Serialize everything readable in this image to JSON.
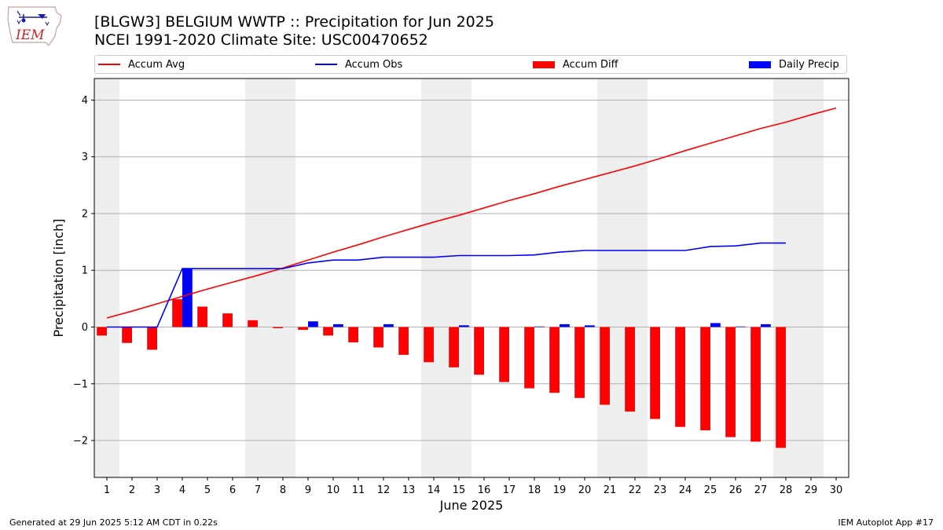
{
  "header": {
    "title_line1": "[BLGW3] BELGIUM WWTP :: Precipitation for Jun 2025",
    "title_line2": "NCEI 1991-2020 Climate Site: USC00470652",
    "logo_text": "IEM"
  },
  "footer": {
    "left": "Generated at 29 Jun 2025 5:12 AM CDT in 0.22s",
    "right": "IEM Autoplot App #17"
  },
  "legend": {
    "items": [
      {
        "label": "Accum Avg",
        "kind": "line",
        "color": "#ff0000"
      },
      {
        "label": "Accum Obs",
        "kind": "line",
        "color": "#0000ff"
      },
      {
        "label": "Accum Diff",
        "kind": "patch",
        "color": "#ff0000"
      },
      {
        "label": "Daily Precip",
        "kind": "patch",
        "color": "#0000ff"
      }
    ]
  },
  "chart_data": {
    "type": "bar",
    "xlabel": "June 2025",
    "ylabel": "Precipitation [inch]",
    "x": [
      1,
      2,
      3,
      4,
      5,
      6,
      7,
      8,
      9,
      10,
      11,
      12,
      13,
      14,
      15,
      16,
      17,
      18,
      19,
      20,
      21,
      22,
      23,
      24,
      25,
      26,
      27,
      28,
      29,
      30
    ],
    "xlim": [
      0.5,
      30.5
    ],
    "ylim": [
      -2.65,
      4.38
    ],
    "yticks": [
      -2,
      -1,
      0,
      1,
      2,
      3,
      4
    ],
    "ytick_labels": [
      "−2",
      "−1",
      "0",
      "1",
      "2",
      "3",
      "4"
    ],
    "grid": "horizontal",
    "legend_position": "top, above plot",
    "weekend_shading": [
      [
        0.5,
        1.5
      ],
      [
        6.5,
        8.5
      ],
      [
        13.5,
        15.5
      ],
      [
        20.5,
        22.5
      ],
      [
        27.5,
        29.5
      ]
    ],
    "series": [
      {
        "name": "Accum Avg",
        "type": "line",
        "color": "#ff0000",
        "x": [
          1,
          2,
          3,
          4,
          5,
          6,
          7,
          8,
          9,
          10,
          11,
          12,
          13,
          14,
          15,
          16,
          17,
          18,
          19,
          20,
          21,
          22,
          23,
          24,
          25,
          26,
          27,
          28,
          29,
          30
        ],
        "values": [
          0.16,
          0.28,
          0.41,
          0.54,
          0.67,
          0.79,
          0.91,
          1.04,
          1.18,
          1.32,
          1.45,
          1.59,
          1.72,
          1.85,
          1.97,
          2.1,
          2.23,
          2.35,
          2.48,
          2.6,
          2.72,
          2.84,
          2.97,
          3.11,
          3.24,
          3.37,
          3.5,
          3.61,
          3.74,
          3.86
        ]
      },
      {
        "name": "Accum Obs",
        "type": "line",
        "color": "#0000ff",
        "x": [
          1,
          2,
          3,
          4,
          5,
          6,
          7,
          8,
          9,
          10,
          11,
          12,
          13,
          14,
          15,
          16,
          17,
          18,
          19,
          20,
          21,
          22,
          23,
          24,
          25,
          26,
          27,
          28
        ],
        "values": [
          0.0,
          0.0,
          0.0,
          1.03,
          1.03,
          1.03,
          1.03,
          1.03,
          1.13,
          1.18,
          1.18,
          1.23,
          1.23,
          1.23,
          1.26,
          1.26,
          1.26,
          1.27,
          1.32,
          1.35,
          1.35,
          1.35,
          1.35,
          1.35,
          1.42,
          1.43,
          1.48,
          1.48
        ]
      },
      {
        "name": "Accum Diff",
        "type": "bar",
        "color": "#ff0000",
        "x": [
          1,
          2,
          3,
          4,
          5,
          6,
          7,
          8,
          9,
          10,
          11,
          12,
          13,
          14,
          15,
          16,
          17,
          18,
          19,
          20,
          21,
          22,
          23,
          24,
          25,
          26,
          27,
          28
        ],
        "values": [
          -0.15,
          -0.28,
          -0.4,
          0.49,
          0.36,
          0.24,
          0.12,
          -0.02,
          -0.05,
          -0.15,
          -0.27,
          -0.36,
          -0.49,
          -0.62,
          -0.71,
          -0.84,
          -0.97,
          -1.08,
          -1.16,
          -1.25,
          -1.37,
          -1.49,
          -1.62,
          -1.76,
          -1.82,
          -1.94,
          -2.02,
          -2.13
        ]
      },
      {
        "name": "Daily Precip",
        "type": "bar",
        "color": "#0000ff",
        "x": [
          1,
          2,
          3,
          4,
          5,
          6,
          7,
          8,
          9,
          10,
          11,
          12,
          13,
          14,
          15,
          16,
          17,
          18,
          19,
          20,
          21,
          22,
          23,
          24,
          25,
          26,
          27,
          28
        ],
        "values": [
          0,
          0,
          0,
          1.03,
          0,
          0,
          0,
          0,
          0.1,
          0.05,
          0,
          0.05,
          0,
          0,
          0.03,
          0,
          0,
          0.01,
          0.05,
          0.03,
          0,
          0,
          0,
          0,
          0.07,
          0.01,
          0.05,
          0
        ]
      }
    ]
  }
}
